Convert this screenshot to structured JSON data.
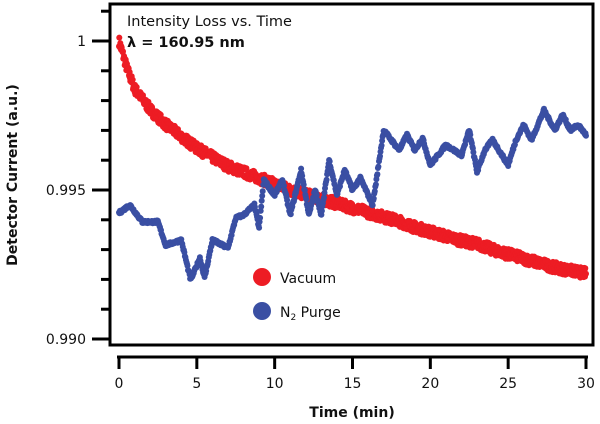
{
  "chart_data": {
    "type": "scatter",
    "title": "Intensity Loss vs. Time",
    "subtitle": "λ = 160.95 nm",
    "xlabel": "Time (min)",
    "ylabel": "Detector Current (a.u.)",
    "xlim": [
      0,
      30
    ],
    "ylim": [
      0.9898,
      1.0012
    ],
    "xticks": [
      0,
      5,
      10,
      15,
      20,
      25,
      30
    ],
    "xtick_labels": [
      "0",
      "5",
      "10",
      "15",
      "20",
      "25",
      "30"
    ],
    "yticks": [
      0.99,
      0.995,
      1.0
    ],
    "ytick_labels": [
      "0.990",
      "0.995",
      "1"
    ],
    "yminor_step": 0.001,
    "grid": false,
    "legend_position": "center-left",
    "series": [
      {
        "name": "Vacuum",
        "name_main": "Vacuum",
        "color": "#ed1c24",
        "x": [
          0,
          0.5,
          1,
          2,
          3,
          4,
          5,
          6,
          7,
          8,
          9,
          10,
          11,
          12,
          13,
          14,
          15,
          16,
          17,
          18,
          19,
          20,
          21,
          22,
          23,
          24,
          25,
          26,
          27,
          28,
          29,
          30
        ],
        "y": [
          1.0,
          0.9991,
          0.9984,
          0.9977,
          0.9972,
          0.9968,
          0.9964,
          0.9961,
          0.9958,
          0.9956,
          0.9954,
          0.9952,
          0.995,
          0.99485,
          0.9947,
          0.99455,
          0.9944,
          0.99425,
          0.9941,
          0.99395,
          0.99375,
          0.9936,
          0.99345,
          0.9933,
          0.9932,
          0.993,
          0.99285,
          0.9927,
          0.99255,
          0.9924,
          0.9923,
          0.9922
        ]
      },
      {
        "name": "N2 Purge",
        "name_main": "N",
        "name_sub": "2",
        "name_rest": " Purge",
        "color": "#3a4fa3",
        "x": [
          0,
          0.7,
          1.5,
          2.5,
          3,
          4,
          4.6,
          5.2,
          5.5,
          6,
          7,
          7.5,
          8,
          8.7,
          9,
          9.3,
          10,
          10.5,
          11,
          11.7,
          12.2,
          12.6,
          13,
          13.5,
          14,
          14.5,
          15,
          15.5,
          16.3,
          17,
          18,
          18.5,
          19,
          19.5,
          20,
          21,
          22,
          22.5,
          23,
          23.5,
          24,
          25,
          25.5,
          26,
          26.5,
          27.3,
          28,
          28.5,
          29,
          29.5,
          30
        ],
        "y": [
          0.99423,
          0.9945,
          0.99393,
          0.99393,
          0.99315,
          0.99332,
          0.99198,
          0.99272,
          0.99205,
          0.99332,
          0.99305,
          0.99406,
          0.99416,
          0.9945,
          0.99372,
          0.99534,
          0.99483,
          0.99534,
          0.99416,
          0.99567,
          0.99416,
          0.995,
          0.99416,
          0.99601,
          0.99483,
          0.99567,
          0.995,
          0.9954,
          0.9945,
          0.99701,
          0.99634,
          0.99685,
          0.99634,
          0.99674,
          0.99584,
          0.99651,
          0.99617,
          0.99701,
          0.9956,
          0.99634,
          0.99668,
          0.99584,
          0.99668,
          0.99718,
          0.99668,
          0.99768,
          0.99701,
          0.99752,
          0.99701,
          0.99718,
          0.99685
        ]
      }
    ]
  }
}
